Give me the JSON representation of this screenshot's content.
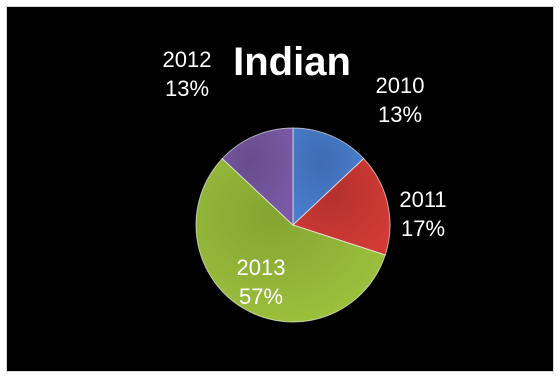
{
  "chart_data": {
    "type": "pie",
    "title": "Indian",
    "categories": [
      "2010",
      "2011",
      "2013",
      "2012"
    ],
    "values": [
      13,
      17,
      57,
      13
    ],
    "labels": [
      {
        "category": "2010",
        "percent": "13%"
      },
      {
        "category": "2011",
        "percent": "17%"
      },
      {
        "category": "2013",
        "percent": "57%"
      },
      {
        "category": "2012",
        "percent": "13%"
      }
    ],
    "colors": [
      "#4a7fd0",
      "#d23a36",
      "#9cc13c",
      "#7a5aa6"
    ],
    "background": "#000000",
    "label_color": "#ffffff"
  }
}
